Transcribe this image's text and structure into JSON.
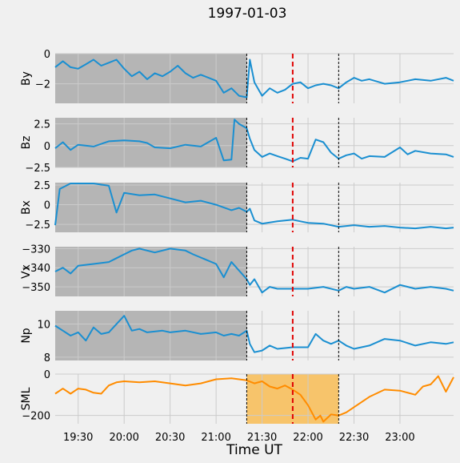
{
  "chart_data": {
    "type": "line",
    "title": "1997-01-03",
    "xlabel": "Time UT",
    "x_range": [
      "19:15",
      "23:35"
    ],
    "x_ticks": [
      "19:30",
      "20:00",
      "20:30",
      "21:00",
      "21:30",
      "22:00",
      "22:30",
      "23:00"
    ],
    "grid": true,
    "shaded_region": [
      "19:15",
      "21:20"
    ],
    "sml_highlight": [
      "21:20",
      "22:20"
    ],
    "vlines_black": [
      "21:20",
      "22:20"
    ],
    "vline_red": "21:50",
    "colors": {
      "series": "#1a8fd1",
      "sml": "#ff8c00",
      "shade": "#b5b5b5",
      "highlight": "#f7c46b",
      "red": "#e00000",
      "grid": "#cbcbcb"
    },
    "panels": [
      {
        "ylabel": "By",
        "ylim": [
          -3.3,
          0
        ],
        "yticks": [
          0,
          -2
        ],
        "shaded": true,
        "points": [
          [
            "19:15",
            -0.9
          ],
          [
            "19:20",
            -0.5
          ],
          [
            "19:25",
            -0.9
          ],
          [
            "19:30",
            -1.0
          ],
          [
            "19:35",
            -0.7
          ],
          [
            "19:40",
            -0.4
          ],
          [
            "19:45",
            -0.8
          ],
          [
            "19:50",
            -0.6
          ],
          [
            "19:55",
            -0.4
          ],
          [
            "20:00",
            -1.0
          ],
          [
            "20:05",
            -1.5
          ],
          [
            "20:10",
            -1.2
          ],
          [
            "20:15",
            -1.7
          ],
          [
            "20:20",
            -1.3
          ],
          [
            "20:25",
            -1.5
          ],
          [
            "20:30",
            -1.2
          ],
          [
            "20:35",
            -0.8
          ],
          [
            "20:40",
            -1.3
          ],
          [
            "20:45",
            -1.6
          ],
          [
            "20:50",
            -1.4
          ],
          [
            "21:00",
            -1.8
          ],
          [
            "21:05",
            -2.6
          ],
          [
            "21:10",
            -2.3
          ],
          [
            "21:15",
            -2.8
          ],
          [
            "21:20",
            -2.9
          ],
          [
            "21:22",
            -0.4
          ],
          [
            "21:25",
            -1.9
          ],
          [
            "21:30",
            -2.8
          ],
          [
            "21:35",
            -2.3
          ],
          [
            "21:40",
            -2.6
          ],
          [
            "21:45",
            -2.4
          ],
          [
            "21:50",
            -2.0
          ],
          [
            "21:55",
            -1.9
          ],
          [
            "22:00",
            -2.3
          ],
          [
            "22:05",
            -2.1
          ],
          [
            "22:10",
            -2.0
          ],
          [
            "22:15",
            -2.1
          ],
          [
            "22:20",
            -2.3
          ],
          [
            "22:25",
            -1.9
          ],
          [
            "22:30",
            -1.6
          ],
          [
            "22:35",
            -1.8
          ],
          [
            "22:40",
            -1.7
          ],
          [
            "22:50",
            -2.0
          ],
          [
            "23:00",
            -1.9
          ],
          [
            "23:10",
            -1.7
          ],
          [
            "23:20",
            -1.8
          ],
          [
            "23:30",
            -1.6
          ],
          [
            "23:35",
            -1.8
          ]
        ]
      },
      {
        "ylabel": "Bz",
        "ylim": [
          -2.5,
          3.2
        ],
        "yticks": [
          2.5,
          0.0,
          -2.5
        ],
        "shaded": true,
        "points": [
          [
            "19:15",
            -0.3
          ],
          [
            "19:20",
            0.4
          ],
          [
            "19:25",
            -0.5
          ],
          [
            "19:30",
            0.1
          ],
          [
            "19:40",
            -0.1
          ],
          [
            "19:50",
            0.5
          ],
          [
            "20:00",
            0.6
          ],
          [
            "20:10",
            0.5
          ],
          [
            "20:15",
            0.3
          ],
          [
            "20:20",
            -0.2
          ],
          [
            "20:30",
            -0.3
          ],
          [
            "20:40",
            0.1
          ],
          [
            "20:50",
            -0.1
          ],
          [
            "21:00",
            0.9
          ],
          [
            "21:05",
            -1.7
          ],
          [
            "21:10",
            -1.6
          ],
          [
            "21:12",
            3.0
          ],
          [
            "21:15",
            2.5
          ],
          [
            "21:20",
            2.0
          ],
          [
            "21:22",
            0.8
          ],
          [
            "21:25",
            -0.5
          ],
          [
            "21:30",
            -1.3
          ],
          [
            "21:35",
            -0.9
          ],
          [
            "21:40",
            -1.2
          ],
          [
            "21:45",
            -1.5
          ],
          [
            "21:50",
            -1.8
          ],
          [
            "21:55",
            -1.4
          ],
          [
            "22:00",
            -1.5
          ],
          [
            "22:05",
            0.7
          ],
          [
            "22:10",
            0.4
          ],
          [
            "22:15",
            -0.8
          ],
          [
            "22:20",
            -1.5
          ],
          [
            "22:25",
            -1.1
          ],
          [
            "22:30",
            -0.9
          ],
          [
            "22:35",
            -1.5
          ],
          [
            "22:40",
            -1.2
          ],
          [
            "22:50",
            -1.3
          ],
          [
            "23:00",
            -0.2
          ],
          [
            "23:05",
            -1.0
          ],
          [
            "23:10",
            -0.6
          ],
          [
            "23:20",
            -0.9
          ],
          [
            "23:30",
            -1.0
          ],
          [
            "23:35",
            -1.3
          ]
        ]
      },
      {
        "ylabel": "Bx",
        "ylim": [
          -3.5,
          2.8
        ],
        "yticks": [
          2.5,
          0.0,
          -2.5
        ],
        "shaded": true,
        "points": [
          [
            "19:15",
            -2.6
          ],
          [
            "19:18",
            2.0
          ],
          [
            "19:25",
            2.7
          ],
          [
            "19:40",
            2.7
          ],
          [
            "19:50",
            2.4
          ],
          [
            "19:55",
            -1.0
          ],
          [
            "20:00",
            1.5
          ],
          [
            "20:10",
            1.2
          ],
          [
            "20:20",
            1.3
          ],
          [
            "20:30",
            0.8
          ],
          [
            "20:40",
            0.3
          ],
          [
            "20:50",
            0.5
          ],
          [
            "21:00",
            0.0
          ],
          [
            "21:10",
            -0.7
          ],
          [
            "21:15",
            -0.4
          ],
          [
            "21:20",
            -0.9
          ],
          [
            "21:22",
            -0.5
          ],
          [
            "21:25",
            -2.0
          ],
          [
            "21:30",
            -2.4
          ],
          [
            "21:40",
            -2.1
          ],
          [
            "21:50",
            -1.9
          ],
          [
            "22:00",
            -2.3
          ],
          [
            "22:10",
            -2.4
          ],
          [
            "22:20",
            -2.8
          ],
          [
            "22:30",
            -2.6
          ],
          [
            "22:40",
            -2.8
          ],
          [
            "22:50",
            -2.7
          ],
          [
            "23:00",
            -2.9
          ],
          [
            "23:10",
            -3.0
          ],
          [
            "23:20",
            -2.8
          ],
          [
            "23:30",
            -3.0
          ],
          [
            "23:35",
            -2.9
          ]
        ]
      },
      {
        "ylabel": "Vx",
        "ylim": [
          -355,
          -329
        ],
        "yticks": [
          -330,
          -340,
          -350
        ],
        "shaded": true,
        "points": [
          [
            "19:15",
            -342
          ],
          [
            "19:20",
            -340
          ],
          [
            "19:25",
            -343
          ],
          [
            "19:30",
            -339
          ],
          [
            "19:40",
            -338
          ],
          [
            "19:50",
            -337
          ],
          [
            "19:55",
            -335
          ],
          [
            "20:00",
            -333
          ],
          [
            "20:05",
            -331
          ],
          [
            "20:10",
            -330
          ],
          [
            "20:20",
            -332
          ],
          [
            "20:30",
            -330
          ],
          [
            "20:40",
            -331
          ],
          [
            "20:45",
            -333
          ],
          [
            "21:00",
            -338
          ],
          [
            "21:05",
            -345
          ],
          [
            "21:10",
            -337
          ],
          [
            "21:20",
            -346
          ],
          [
            "21:22",
            -349
          ],
          [
            "21:25",
            -346
          ],
          [
            "21:30",
            -353
          ],
          [
            "21:35",
            -350
          ],
          [
            "21:40",
            -351
          ],
          [
            "21:50",
            -351
          ],
          [
            "22:00",
            -351
          ],
          [
            "22:10",
            -350
          ],
          [
            "22:20",
            -352
          ],
          [
            "22:25",
            -350
          ],
          [
            "22:30",
            -351
          ],
          [
            "22:40",
            -350
          ],
          [
            "22:50",
            -353
          ],
          [
            "23:00",
            -349
          ],
          [
            "23:10",
            -351
          ],
          [
            "23:20",
            -350
          ],
          [
            "23:30",
            -351
          ],
          [
            "23:35",
            -352
          ]
        ]
      },
      {
        "ylabel": "Np",
        "ylim": [
          7.8,
          10.8
        ],
        "yticks": [
          10,
          8
        ],
        "shaded": true,
        "points": [
          [
            "19:15",
            9.9
          ],
          [
            "19:20",
            9.6
          ],
          [
            "19:25",
            9.3
          ],
          [
            "19:30",
            9.5
          ],
          [
            "19:35",
            9.0
          ],
          [
            "19:40",
            9.8
          ],
          [
            "19:45",
            9.4
          ],
          [
            "19:50",
            9.5
          ],
          [
            "20:00",
            10.5
          ],
          [
            "20:05",
            9.6
          ],
          [
            "20:10",
            9.7
          ],
          [
            "20:15",
            9.5
          ],
          [
            "20:25",
            9.6
          ],
          [
            "20:30",
            9.5
          ],
          [
            "20:40",
            9.6
          ],
          [
            "20:50",
            9.4
          ],
          [
            "21:00",
            9.5
          ],
          [
            "21:05",
            9.3
          ],
          [
            "21:10",
            9.4
          ],
          [
            "21:15",
            9.3
          ],
          [
            "21:20",
            9.6
          ],
          [
            "21:22",
            8.8
          ],
          [
            "21:25",
            8.3
          ],
          [
            "21:30",
            8.4
          ],
          [
            "21:35",
            8.7
          ],
          [
            "21:40",
            8.5
          ],
          [
            "21:50",
            8.6
          ],
          [
            "22:00",
            8.6
          ],
          [
            "22:05",
            9.4
          ],
          [
            "22:10",
            9.0
          ],
          [
            "22:15",
            8.8
          ],
          [
            "22:20",
            9.0
          ],
          [
            "22:25",
            8.7
          ],
          [
            "22:30",
            8.5
          ],
          [
            "22:40",
            8.7
          ],
          [
            "22:50",
            9.1
          ],
          [
            "23:00",
            9.0
          ],
          [
            "23:10",
            8.7
          ],
          [
            "23:20",
            8.9
          ],
          [
            "23:30",
            8.8
          ],
          [
            "23:35",
            8.9
          ]
        ]
      },
      {
        "ylabel": "SML",
        "ylim": [
          -240,
          0
        ],
        "yticks": [
          0,
          -200
        ],
        "shaded": false,
        "points": [
          [
            "19:15",
            -95
          ],
          [
            "19:20",
            -70
          ],
          [
            "19:25",
            -95
          ],
          [
            "19:30",
            -70
          ],
          [
            "19:35",
            -75
          ],
          [
            "19:40",
            -90
          ],
          [
            "19:45",
            -95
          ],
          [
            "19:50",
            -55
          ],
          [
            "19:55",
            -40
          ],
          [
            "20:00",
            -35
          ],
          [
            "20:10",
            -40
          ],
          [
            "20:20",
            -35
          ],
          [
            "20:30",
            -45
          ],
          [
            "20:40",
            -55
          ],
          [
            "20:50",
            -45
          ],
          [
            "21:00",
            -25
          ],
          [
            "21:10",
            -20
          ],
          [
            "21:20",
            -30
          ],
          [
            "21:25",
            -45
          ],
          [
            "21:30",
            -35
          ],
          [
            "21:35",
            -60
          ],
          [
            "21:40",
            -70
          ],
          [
            "21:45",
            -55
          ],
          [
            "21:50",
            -75
          ],
          [
            "21:55",
            -100
          ],
          [
            "22:00",
            -150
          ],
          [
            "22:05",
            -220
          ],
          [
            "22:08",
            -200
          ],
          [
            "22:10",
            -230
          ],
          [
            "22:15",
            -195
          ],
          [
            "22:20",
            -200
          ],
          [
            "22:25",
            -185
          ],
          [
            "22:30",
            -160
          ],
          [
            "22:40",
            -110
          ],
          [
            "22:50",
            -75
          ],
          [
            "23:00",
            -80
          ],
          [
            "23:10",
            -100
          ],
          [
            "23:15",
            -60
          ],
          [
            "23:20",
            -50
          ],
          [
            "23:25",
            -10
          ],
          [
            "23:30",
            -85
          ],
          [
            "23:35",
            -15
          ]
        ]
      }
    ]
  }
}
